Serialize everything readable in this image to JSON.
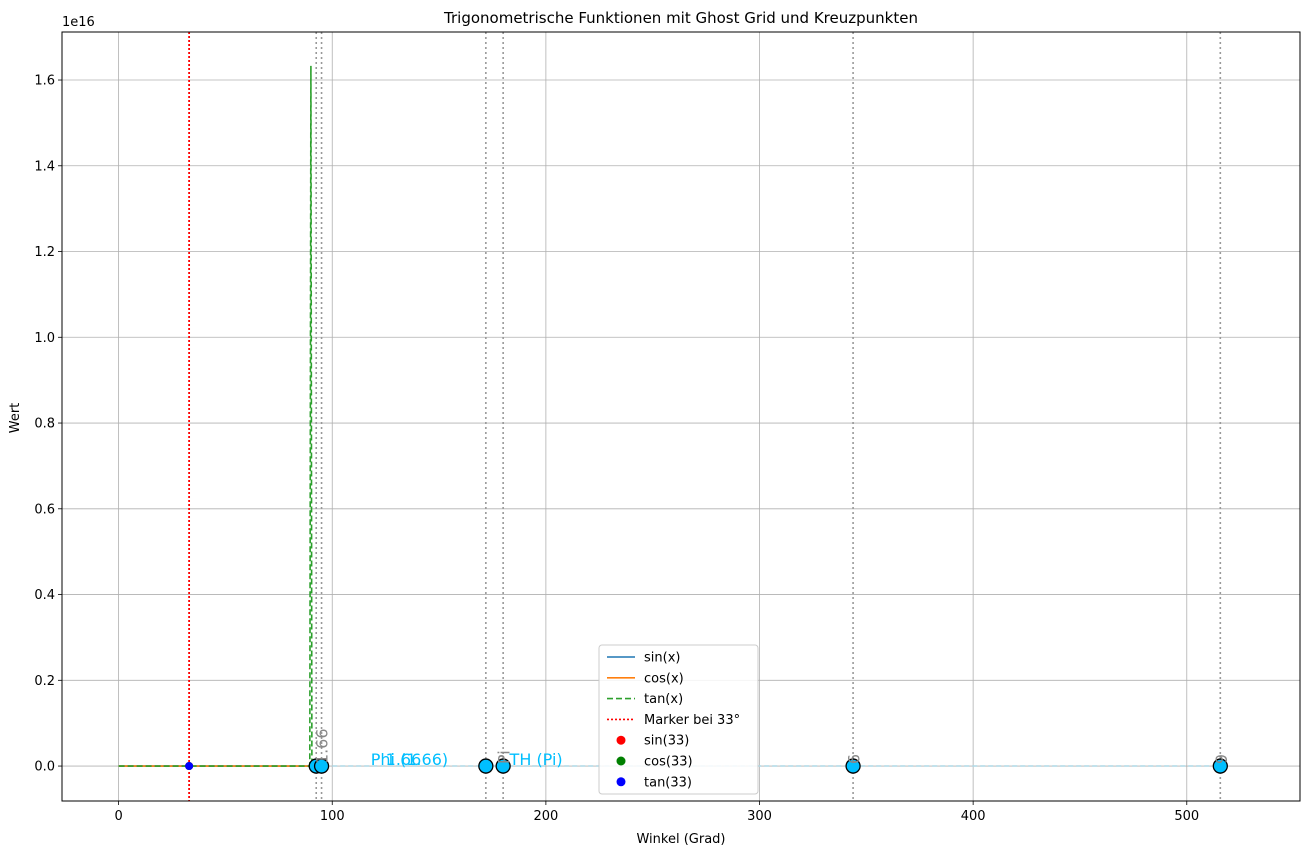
{
  "chart_data": {
    "type": "line",
    "title": "Trigonometrische Funktionen mit Ghost Grid und Kreuzpunkten",
    "xlabel": "Winkel (Grad)",
    "ylabel": "Wert",
    "y_scale_label": "1e16",
    "xlim": [
      -26.5,
      553
    ],
    "ylim": [
      -0.0815,
      1.712
    ],
    "xticks": [
      0,
      100,
      200,
      300,
      400,
      500
    ],
    "xtick_labels": [
      "0",
      "100",
      "200",
      "300",
      "400",
      "500"
    ],
    "yticks": [
      0.0,
      0.2,
      0.4,
      0.6,
      0.8,
      1.0,
      1.2,
      1.4,
      1.6
    ],
    "ytick_labels": [
      "0.0",
      "0.2",
      "0.4",
      "0.6",
      "0.8",
      "1.0",
      "1.2",
      "1.4",
      "1.6"
    ],
    "grid": true,
    "series": [
      {
        "name": "sin(x)",
        "color": "#1f77b4",
        "style": "solid",
        "x": [
          0,
          90
        ],
        "y": [
          0,
          0
        ]
      },
      {
        "name": "cos(x)",
        "color": "#ff7f0e",
        "style": "solid",
        "x": [
          0,
          90
        ],
        "y": [
          0,
          0
        ]
      },
      {
        "name": "tan(x)",
        "color": "#2ca02c",
        "style": "dashed",
        "x": [
          0,
          89.0,
          89.5,
          90.0,
          90.5,
          91.0
        ],
        "y": [
          0,
          0.0,
          0.0,
          1.633,
          0.0,
          0.0
        ]
      }
    ],
    "marker_line": {
      "name": "Marker bei 33°",
      "x": 33,
      "color": "#ff0000"
    },
    "marker_points": [
      {
        "name": "sin(33)",
        "x": 33,
        "y": 0,
        "color": "#ff0000"
      },
      {
        "name": "cos(33)",
        "x": 33,
        "y": 0,
        "color": "#008000"
      },
      {
        "name": "tan(33)",
        "x": 33,
        "y": 0,
        "color": "#0000ff"
      }
    ],
    "ghost_grid_x": [
      92.5,
      95,
      171.9,
      180,
      343.8,
      515.7
    ],
    "ghost_line": {
      "x": [
        92.5,
        515.7
      ],
      "y": [
        0,
        0
      ],
      "color": "#add8e6"
    },
    "cross_points": [
      {
        "x": 92.5,
        "y": 0
      },
      {
        "x": 95,
        "y": 0
      },
      {
        "x": 171.9,
        "y": 0
      },
      {
        "x": 180,
        "y": 0
      },
      {
        "x": 343.8,
        "y": 0
      },
      {
        "x": 515.7,
        "y": 0
      }
    ],
    "annotations_cyan": [
      {
        "text": "1.66",
        "x": 125
      },
      {
        "text": "Phi (1.66)",
        "x": 118
      },
      {
        "text": "TH (Pi)",
        "x": 183
      }
    ],
    "annotations_gray": [
      {
        "text": "1.66",
        "x": 96
      },
      {
        "text": "Pi",
        "x": 181
      },
      {
        "text": "6",
        "x": 345
      },
      {
        "text": "9",
        "x": 517
      }
    ],
    "legend": [
      {
        "label": "sin(x)",
        "kind": "line",
        "color": "#1f77b4",
        "style": "solid"
      },
      {
        "label": "cos(x)",
        "kind": "line",
        "color": "#ff7f0e",
        "style": "solid"
      },
      {
        "label": "tan(x)",
        "kind": "line",
        "color": "#2ca02c",
        "style": "dashed"
      },
      {
        "label": "Marker bei 33°",
        "kind": "line",
        "color": "#ff0000",
        "style": "dotted"
      },
      {
        "label": "sin(33)",
        "kind": "dot",
        "color": "#ff0000"
      },
      {
        "label": "cos(33)",
        "kind": "dot",
        "color": "#008000"
      },
      {
        "label": "tan(33)",
        "kind": "dot",
        "color": "#0000ff"
      }
    ]
  }
}
